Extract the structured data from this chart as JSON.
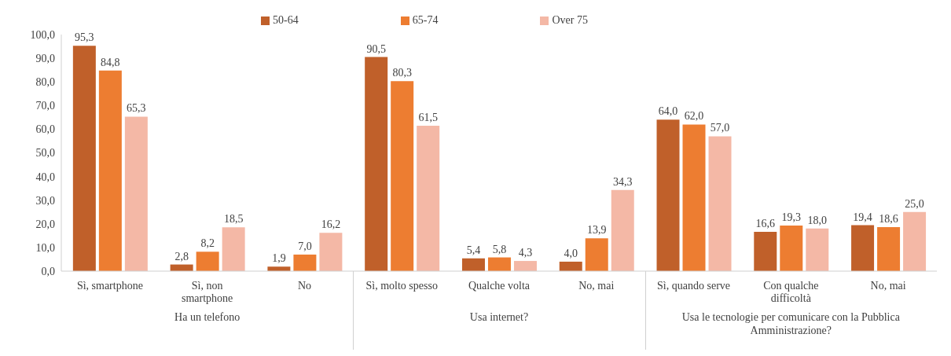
{
  "chart_data": {
    "type": "bar",
    "categories": [
      "Sì, smartphone",
      "Sì, non smartphone",
      "No",
      "Sì, molto spesso",
      "Qualche volta",
      "No, mai",
      "Sì, quando serve",
      "Con qualche difficoltà",
      "No, mai"
    ],
    "series": [
      {
        "name": "50-64",
        "color": "#c0602a",
        "values": [
          95.3,
          2.8,
          1.9,
          90.5,
          5.4,
          4.0,
          64.0,
          16.6,
          19.4
        ],
        "value_labels": [
          "95,3",
          "2,8",
          "1,9",
          "90,5",
          "5,4",
          "4,0",
          "64,0",
          "16,6",
          "19,4"
        ]
      },
      {
        "name": "65-74",
        "color": "#ed7d31",
        "values": [
          84.8,
          8.2,
          7.0,
          80.3,
          5.8,
          13.9,
          62.0,
          19.3,
          18.6
        ],
        "value_labels": [
          "84,8",
          "8,2",
          "7,0",
          "80,3",
          "5,8",
          "13,9",
          "62,0",
          "19,3",
          "18,6"
        ]
      },
      {
        "name": "Over 75",
        "color": "#f4b8a6",
        "values": [
          65.3,
          18.5,
          16.2,
          61.5,
          4.3,
          34.3,
          57.0,
          18.0,
          25.0
        ],
        "value_labels": [
          "65,3",
          "18,5",
          "16,2",
          "61,5",
          "4,3",
          "34,3",
          "57,0",
          "18,0",
          "25,0"
        ]
      }
    ],
    "ylim": [
      0,
      100
    ],
    "yticks": [
      {
        "value": 0,
        "label": "0,0"
      },
      {
        "value": 10,
        "label": "10,0"
      },
      {
        "value": 20,
        "label": "20,0"
      },
      {
        "value": 30,
        "label": "30,0"
      },
      {
        "value": 40,
        "label": "40,0"
      },
      {
        "value": 50,
        "label": "50,0"
      },
      {
        "value": 60,
        "label": "60,0"
      },
      {
        "value": 70,
        "label": "70,0"
      },
      {
        "value": 80,
        "label": "80,0"
      },
      {
        "value": 90,
        "label": "90,0"
      },
      {
        "value": 100,
        "label": "100,0"
      }
    ],
    "legend": "top",
    "annotations": [
      "Ha un telefono",
      "Usa internet?",
      "Usa le tecnologie per comunicare con la Pubblica Amministrazione?"
    ]
  }
}
